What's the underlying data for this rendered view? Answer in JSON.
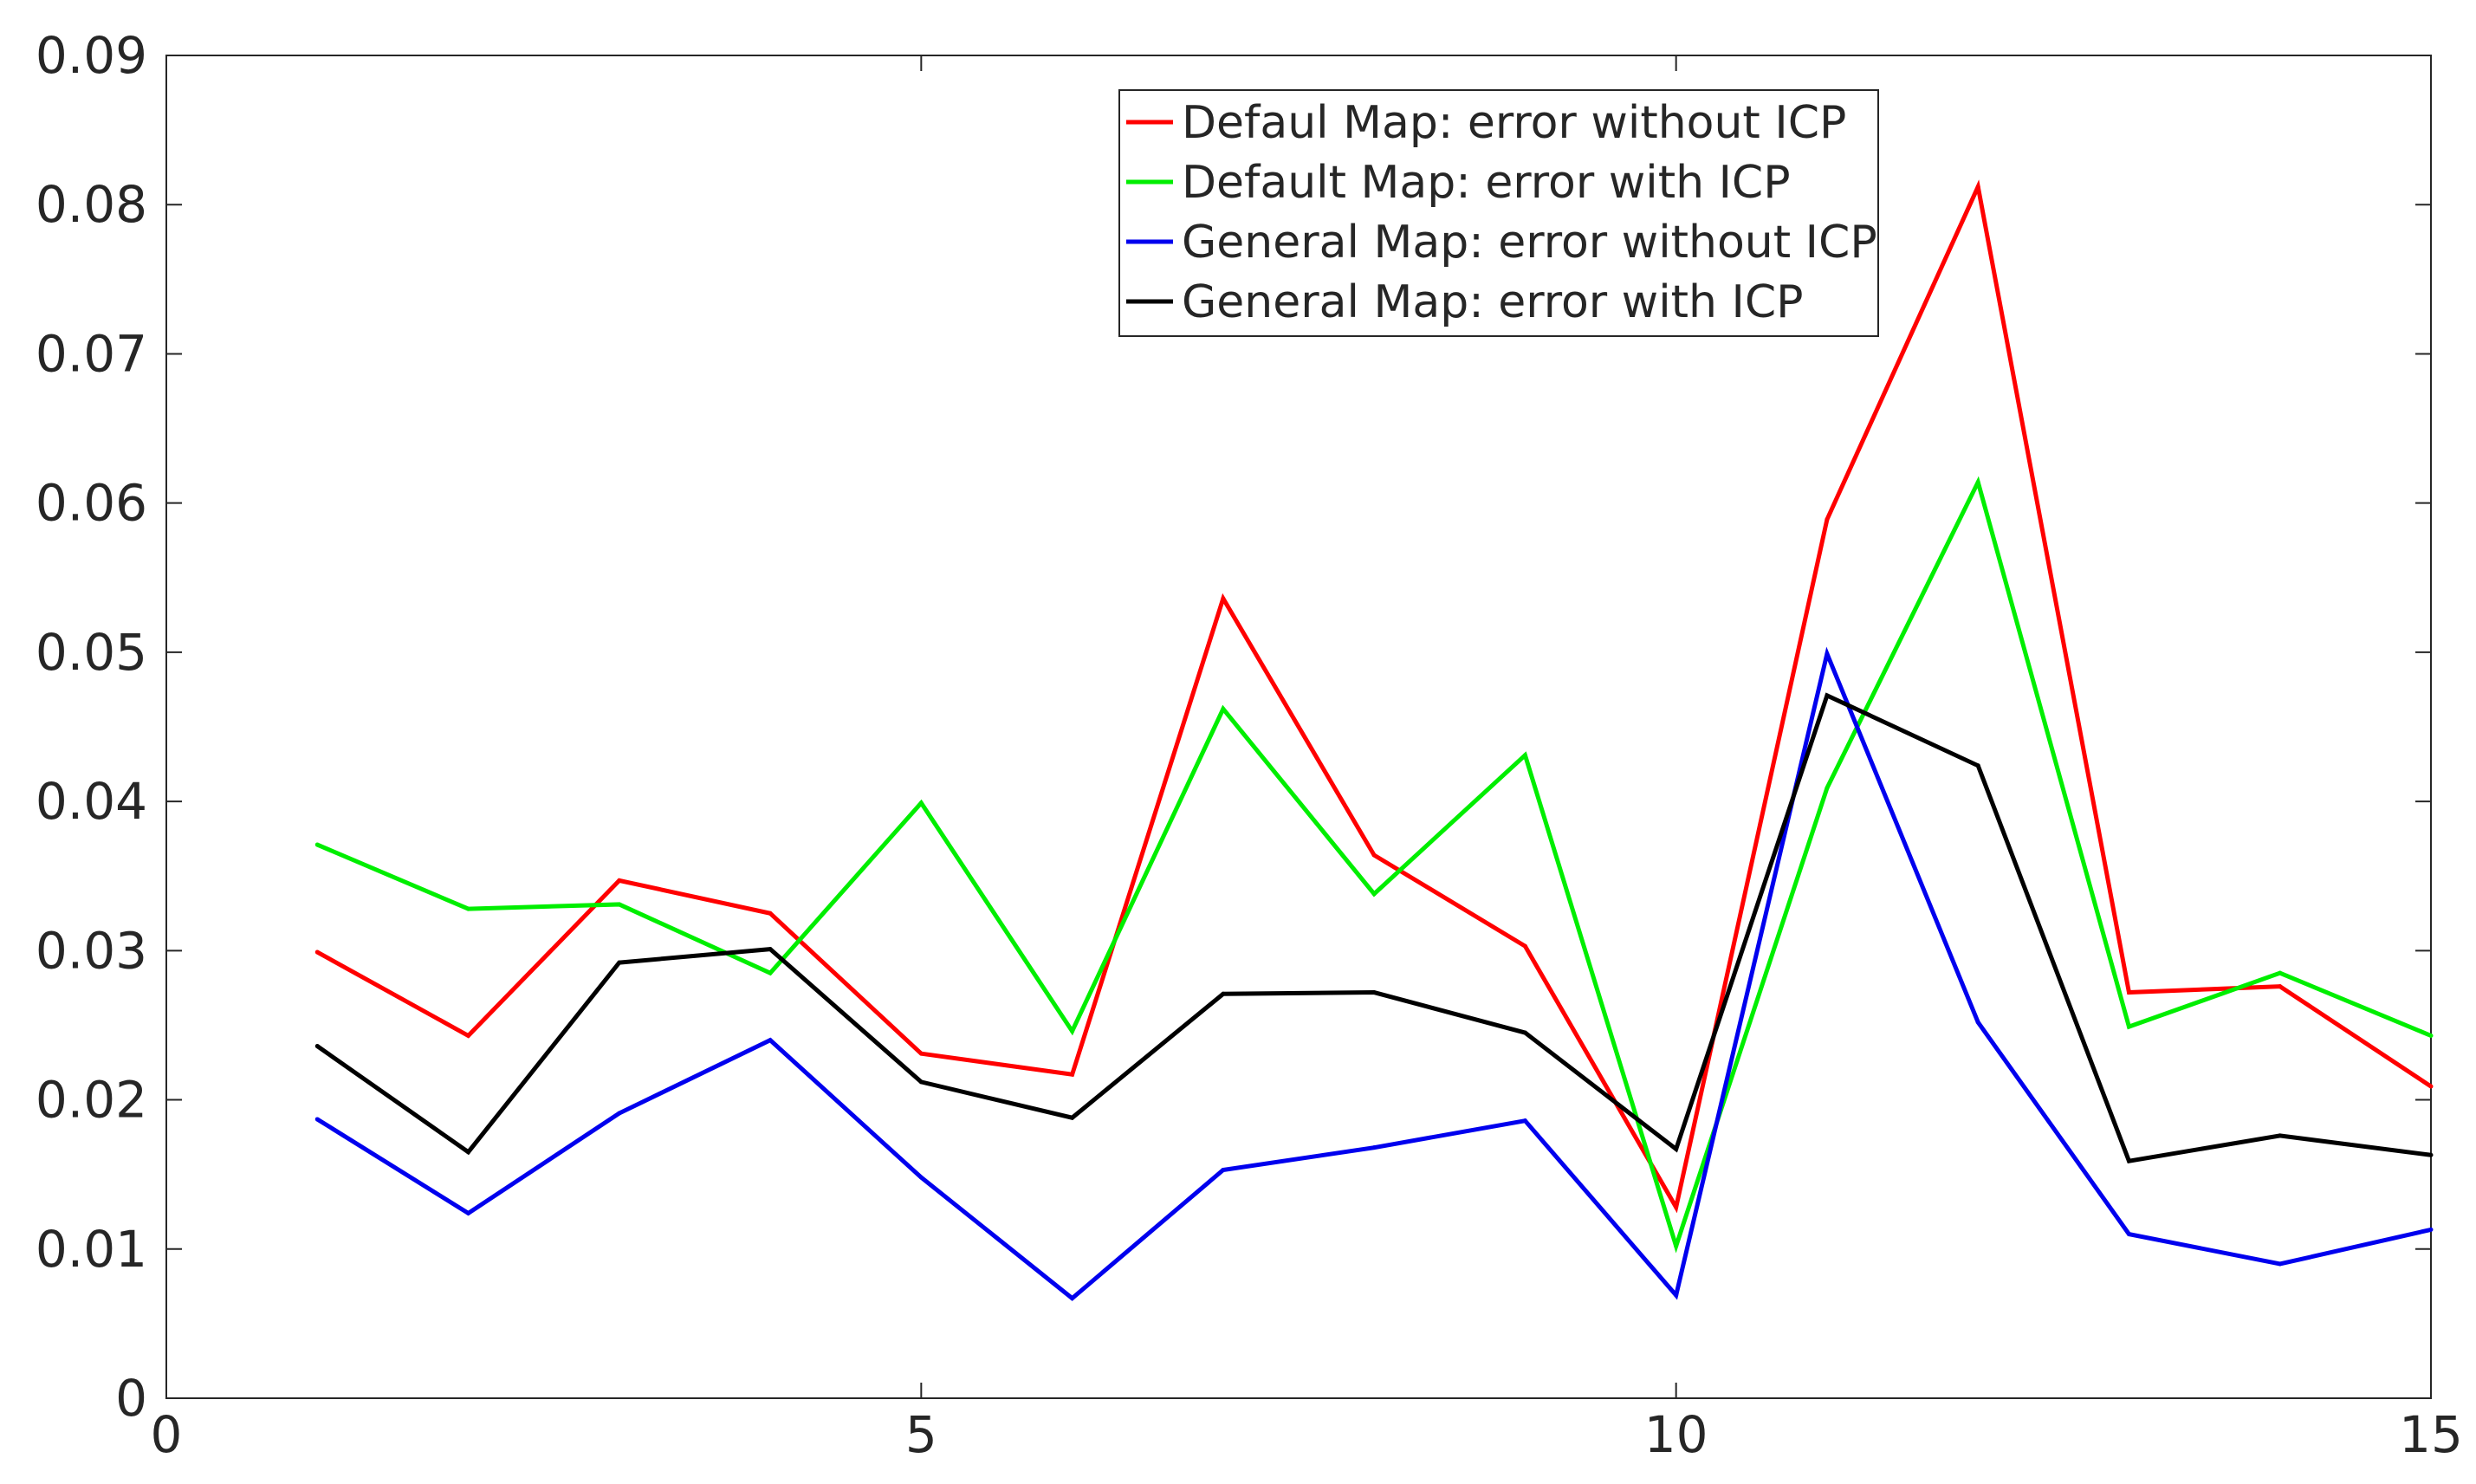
{
  "chart_data": {
    "type": "line",
    "title": "",
    "xlabel": "",
    "ylabel": "",
    "xlim": [
      0,
      15
    ],
    "ylim": [
      0,
      0.09
    ],
    "x_ticks": [
      0,
      5,
      10,
      15
    ],
    "x_tick_labels": [
      "0",
      "5",
      "10",
      "15"
    ],
    "y_ticks": [
      0,
      0.01,
      0.02,
      0.03,
      0.04,
      0.05,
      0.06,
      0.07,
      0.08,
      0.09
    ],
    "y_tick_labels": [
      "0",
      "0.01",
      "0.02",
      "0.03",
      "0.04",
      "0.05",
      "0.06",
      "0.07",
      "0.08",
      "0.09"
    ],
    "grid": false,
    "legend_position": "top-center",
    "x": [
      1,
      2,
      3,
      4,
      5,
      6,
      7,
      8,
      9,
      10,
      11,
      12,
      13,
      14,
      15
    ],
    "series": [
      {
        "name": "Defaul Map: error without ICP",
        "color": "#ff0000",
        "values": [
          0.0299,
          0.0243,
          0.0347,
          0.0325,
          0.0231,
          0.0217,
          0.0536,
          0.0364,
          0.0303,
          0.0128,
          0.0589,
          0.0812,
          0.0272,
          0.0276,
          0.0209
        ]
      },
      {
        "name": "Default Map: error with ICP",
        "color": "#00ee00",
        "values": [
          0.0371,
          0.0328,
          0.0331,
          0.0285,
          0.0399,
          0.0246,
          0.0462,
          0.0338,
          0.0431,
          0.0102,
          0.0409,
          0.0614,
          0.0249,
          0.0285,
          0.0243
        ]
      },
      {
        "name": "General Map: error without ICP",
        "color": "#0000ee",
        "values": [
          0.0187,
          0.0124,
          0.0191,
          0.024,
          0.0148,
          0.0067,
          0.0153,
          0.0168,
          0.0186,
          0.0069,
          0.0499,
          0.0252,
          0.011,
          0.009,
          0.0113
        ]
      },
      {
        "name": "General Map: error with ICP",
        "color": "#000000",
        "values": [
          0.0236,
          0.0165,
          0.0292,
          0.0301,
          0.0212,
          0.0188,
          0.0271,
          0.0272,
          0.0245,
          0.0167,
          0.0471,
          0.0424,
          0.0159,
          0.0176,
          0.0163
        ]
      }
    ]
  }
}
